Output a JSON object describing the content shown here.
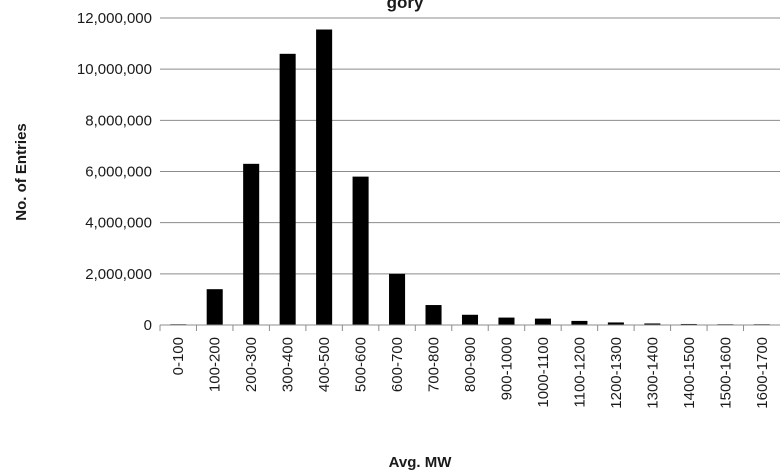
{
  "chart_data": {
    "type": "bar",
    "title_fragment": "gory",
    "xlabel": "Avg. MW",
    "ylabel": "No. of Entries",
    "ylim": [
      0,
      12000000
    ],
    "yticks": [
      "0",
      "2,000,000",
      "4,000,000",
      "6,000,000",
      "8,000,000",
      "10,000,000",
      "12,000,000"
    ],
    "grid": true,
    "legend": "none",
    "bar_color": "#000000",
    "categories": [
      "0-100",
      "100-200",
      "200-300",
      "300-400",
      "400-500",
      "500-600",
      "600-700",
      "700-800",
      "800-900",
      "900-1000",
      "1000-1100",
      "1100-1200",
      "1200-1300",
      "1300-1400",
      "1400-1500",
      "1500-1600",
      "1600-1700"
    ],
    "values": [
      30000,
      1400000,
      6300000,
      10600000,
      11550000,
      5800000,
      2000000,
      780000,
      400000,
      290000,
      250000,
      160000,
      100000,
      60000,
      40000,
      30000,
      30000
    ]
  }
}
